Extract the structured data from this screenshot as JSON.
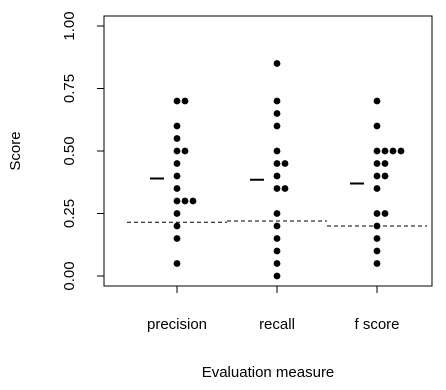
{
  "chart_data": {
    "type": "strip",
    "x_label": "Evaluation measure",
    "y_label": "Score",
    "categories": [
      "precision",
      "recall",
      "f score"
    ],
    "points": [
      [
        0.7,
        0.7,
        0.6,
        0.55,
        0.5,
        0.5,
        0.45,
        0.4,
        0.35,
        0.3,
        0.3,
        0.3,
        0.25,
        0.2,
        0.15,
        0.05
      ],
      [
        0.85,
        0.7,
        0.65,
        0.6,
        0.5,
        0.45,
        0.45,
        0.4,
        0.35,
        0.35,
        0.25,
        0.2,
        0.15,
        0.1,
        0.05,
        0.0
      ],
      [
        0.7,
        0.6,
        0.5,
        0.5,
        0.5,
        0.5,
        0.45,
        0.45,
        0.4,
        0.4,
        0.35,
        0.25,
        0.25,
        0.2,
        0.15,
        0.1,
        0.05
      ]
    ],
    "means": [
      0.39,
      0.385,
      0.37
    ],
    "baselines": [
      0.215,
      0.22,
      0.2
    ],
    "color": "#000000",
    "ylim": [
      -0.04,
      1.04
    ],
    "yticks": [
      {
        "value": 0,
        "label": "0.00"
      },
      0.25,
      {
        "value": 0.5,
        "label": "0.50"
      },
      0.75,
      {
        "value": 1,
        "label": "1.00"
      }
    ]
  }
}
